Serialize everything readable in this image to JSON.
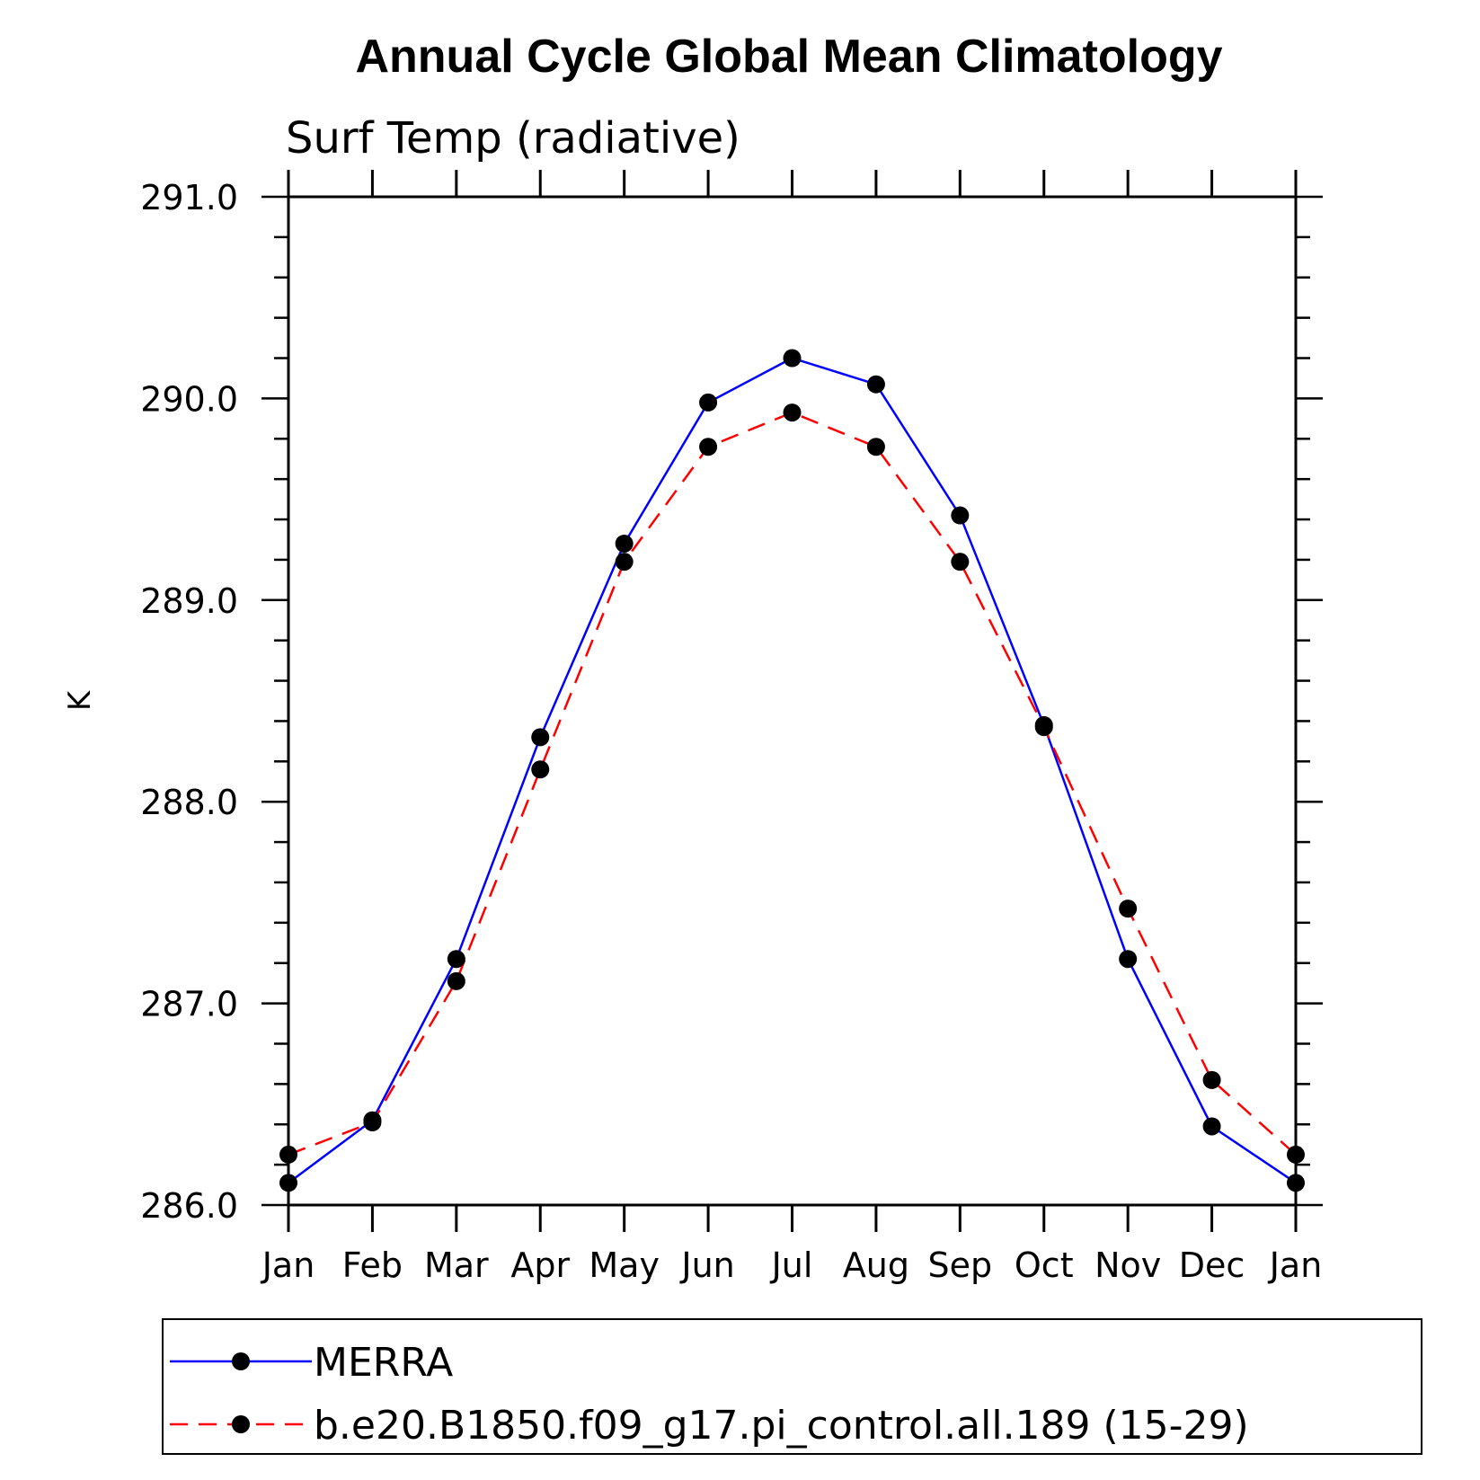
{
  "chart_data": {
    "type": "line",
    "title": "Annual Cycle Global Mean Climatology",
    "subtitle": "Surf Temp (radiative)",
    "xlabel": "",
    "ylabel": "K",
    "categories": [
      "Jan",
      "Feb",
      "Mar",
      "Apr",
      "May",
      "Jun",
      "Jul",
      "Aug",
      "Sep",
      "Oct",
      "Nov",
      "Dec",
      "Jan"
    ],
    "ylim": [
      286.0,
      291.0
    ],
    "yticks": [
      "286.0",
      "287.0",
      "288.0",
      "289.0",
      "290.0",
      "291.0"
    ],
    "grid": false,
    "legend_position": "bottom",
    "series": [
      {
        "name": "MERRA",
        "color": "#0000ff",
        "line_style": "solid",
        "marker": "filled-circle",
        "values": [
          286.11,
          286.42,
          287.22,
          288.32,
          289.28,
          289.98,
          290.2,
          290.07,
          289.42,
          288.38,
          287.22,
          286.39,
          286.11
        ]
      },
      {
        "name": "b.e20.B1850.f09_g17.pi_control.all.189 (15-29)",
        "color": "#ff0000",
        "line_style": "dashed",
        "marker": "filled-circle",
        "values": [
          286.25,
          286.41,
          287.11,
          288.16,
          289.19,
          289.76,
          289.93,
          289.76,
          289.19,
          288.37,
          287.47,
          286.62,
          286.25
        ]
      }
    ]
  }
}
